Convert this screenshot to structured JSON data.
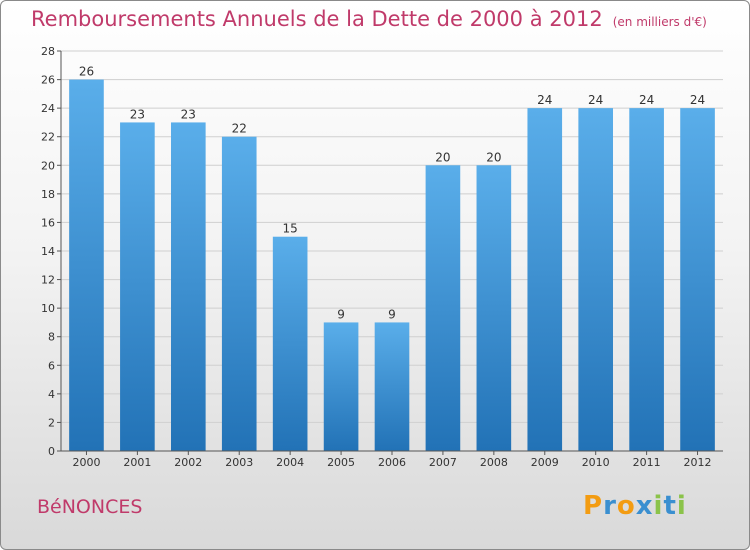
{
  "title": "Remboursements Annuels de la Dette de 2000 à 2012",
  "unit_label": "(en milliers d'€)",
  "commune": "BéNONCES",
  "logo": {
    "text": "Proxiti",
    "letters": [
      "P",
      "r",
      "o",
      "x",
      "i",
      "t",
      "i"
    ],
    "colors": [
      "#f39c12",
      "#3a8fd0",
      "#f39c12",
      "#3a8fd0",
      "#8bc34a",
      "#3a8fd0",
      "#8bc34a"
    ]
  },
  "colors": {
    "title": "#c03a6a",
    "bar_top": "#5aaeea",
    "bar_bottom": "#2272b6"
  },
  "chart_data": {
    "type": "bar",
    "title": "Remboursements Annuels de la Dette de 2000 à 2012",
    "xlabel": "",
    "ylabel": "",
    "categories": [
      "2000",
      "2001",
      "2002",
      "2003",
      "2004",
      "2005",
      "2006",
      "2007",
      "2008",
      "2009",
      "2010",
      "2011",
      "2012"
    ],
    "values": [
      26,
      23,
      23,
      22,
      15,
      9,
      9,
      20,
      20,
      24,
      24,
      24,
      24
    ],
    "ylim": [
      0,
      28
    ],
    "yticks": [
      0,
      2,
      4,
      6,
      8,
      10,
      12,
      14,
      16,
      18,
      20,
      22,
      24,
      26,
      28
    ],
    "grid": true
  }
}
